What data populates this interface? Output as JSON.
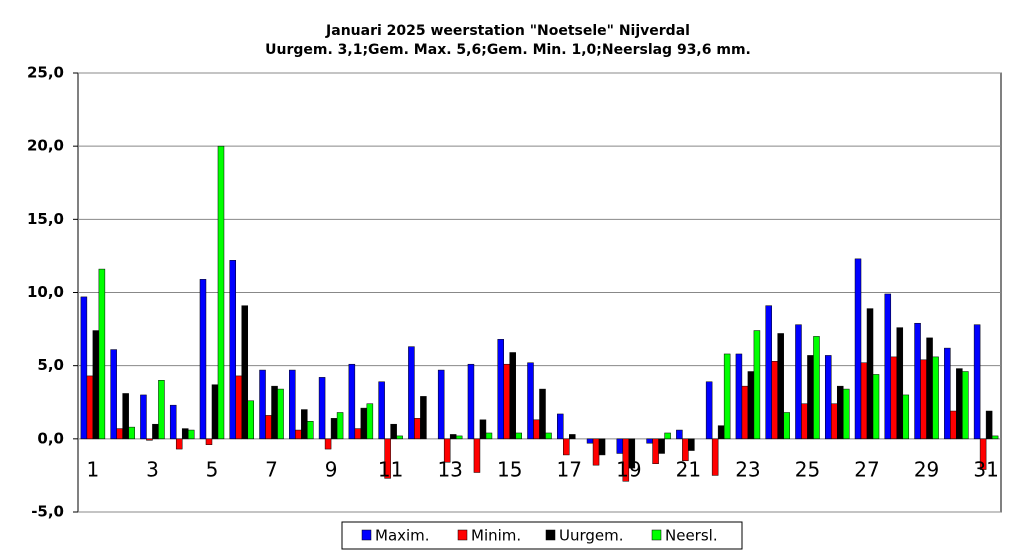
{
  "chart_data": {
    "type": "bar",
    "title": "Januari 2025 weerstation \"Noetsele\" Nijverdal",
    "subtitle": "Uurgem. 3,1;Gem. Max. 5,6;Gem. Min. 1,0;Neerslag 93,6 mm.",
    "categories": [
      "1",
      null,
      "3",
      null,
      "5",
      null,
      "7",
      null,
      "9",
      null,
      "11",
      null,
      "13",
      null,
      "15",
      null,
      "17",
      null,
      "19",
      null,
      "21",
      null,
      "23",
      null,
      "25",
      null,
      "27",
      null,
      "29",
      null,
      "31"
    ],
    "series": [
      {
        "name": "Maxim.",
        "color": "#0000ff",
        "values": [
          9.7,
          6.1,
          3.0,
          2.3,
          10.9,
          12.2,
          4.7,
          4.7,
          4.2,
          5.1,
          3.9,
          6.3,
          4.7,
          5.1,
          6.8,
          5.2,
          1.7,
          -0.3,
          -1.0,
          -0.3,
          0.6,
          3.9,
          5.8,
          9.1,
          7.8,
          5.7,
          12.3,
          9.9,
          7.9,
          6.2,
          7.8
        ]
      },
      {
        "name": "Minim.",
        "color": "#ff0000",
        "values": [
          4.3,
          0.7,
          -0.1,
          -0.7,
          -0.4,
          4.3,
          1.6,
          0.6,
          -0.7,
          0.7,
          -2.7,
          1.4,
          -1.6,
          -2.3,
          5.1,
          1.3,
          -1.1,
          -1.8,
          -2.9,
          -1.7,
          -1.5,
          -2.5,
          3.6,
          5.3,
          2.4,
          2.4,
          5.2,
          5.6,
          5.4,
          1.9,
          -2.1
        ]
      },
      {
        "name": "Uurgem.",
        "color": "#000000",
        "values": [
          7.4,
          3.1,
          1.0,
          0.7,
          3.7,
          9.1,
          3.6,
          2.0,
          1.4,
          2.1,
          1.0,
          2.9,
          0.3,
          1.3,
          5.9,
          3.4,
          0.3,
          -1.1,
          -2.0,
          -1.0,
          -0.8,
          0.9,
          4.6,
          7.2,
          5.7,
          3.6,
          8.9,
          7.6,
          6.9,
          4.8,
          1.9
        ]
      },
      {
        "name": "Neersl.",
        "color": "#00ff00",
        "values": [
          11.6,
          0.8,
          4.0,
          0.6,
          20.0,
          2.6,
          3.4,
          1.2,
          1.8,
          2.4,
          0.2,
          0,
          0.2,
          0.4,
          0.4,
          0.4,
          0,
          0,
          0,
          0.4,
          0,
          5.8,
          7.4,
          1.8,
          7.0,
          3.4,
          4.4,
          3.0,
          5.6,
          4.6,
          0.2
        ]
      }
    ],
    "ylim": [
      -5,
      25
    ],
    "yticks": [
      {
        "value": -5,
        "label": "-5,0"
      },
      {
        "value": 0,
        "label": "0,0"
      },
      {
        "value": 5,
        "label": "5,0"
      },
      {
        "value": 10,
        "label": "10,0"
      },
      {
        "value": 15,
        "label": "15,0"
      },
      {
        "value": 20,
        "label": "20,0"
      },
      {
        "value": 25,
        "label": "25,0"
      }
    ],
    "grid": true
  }
}
